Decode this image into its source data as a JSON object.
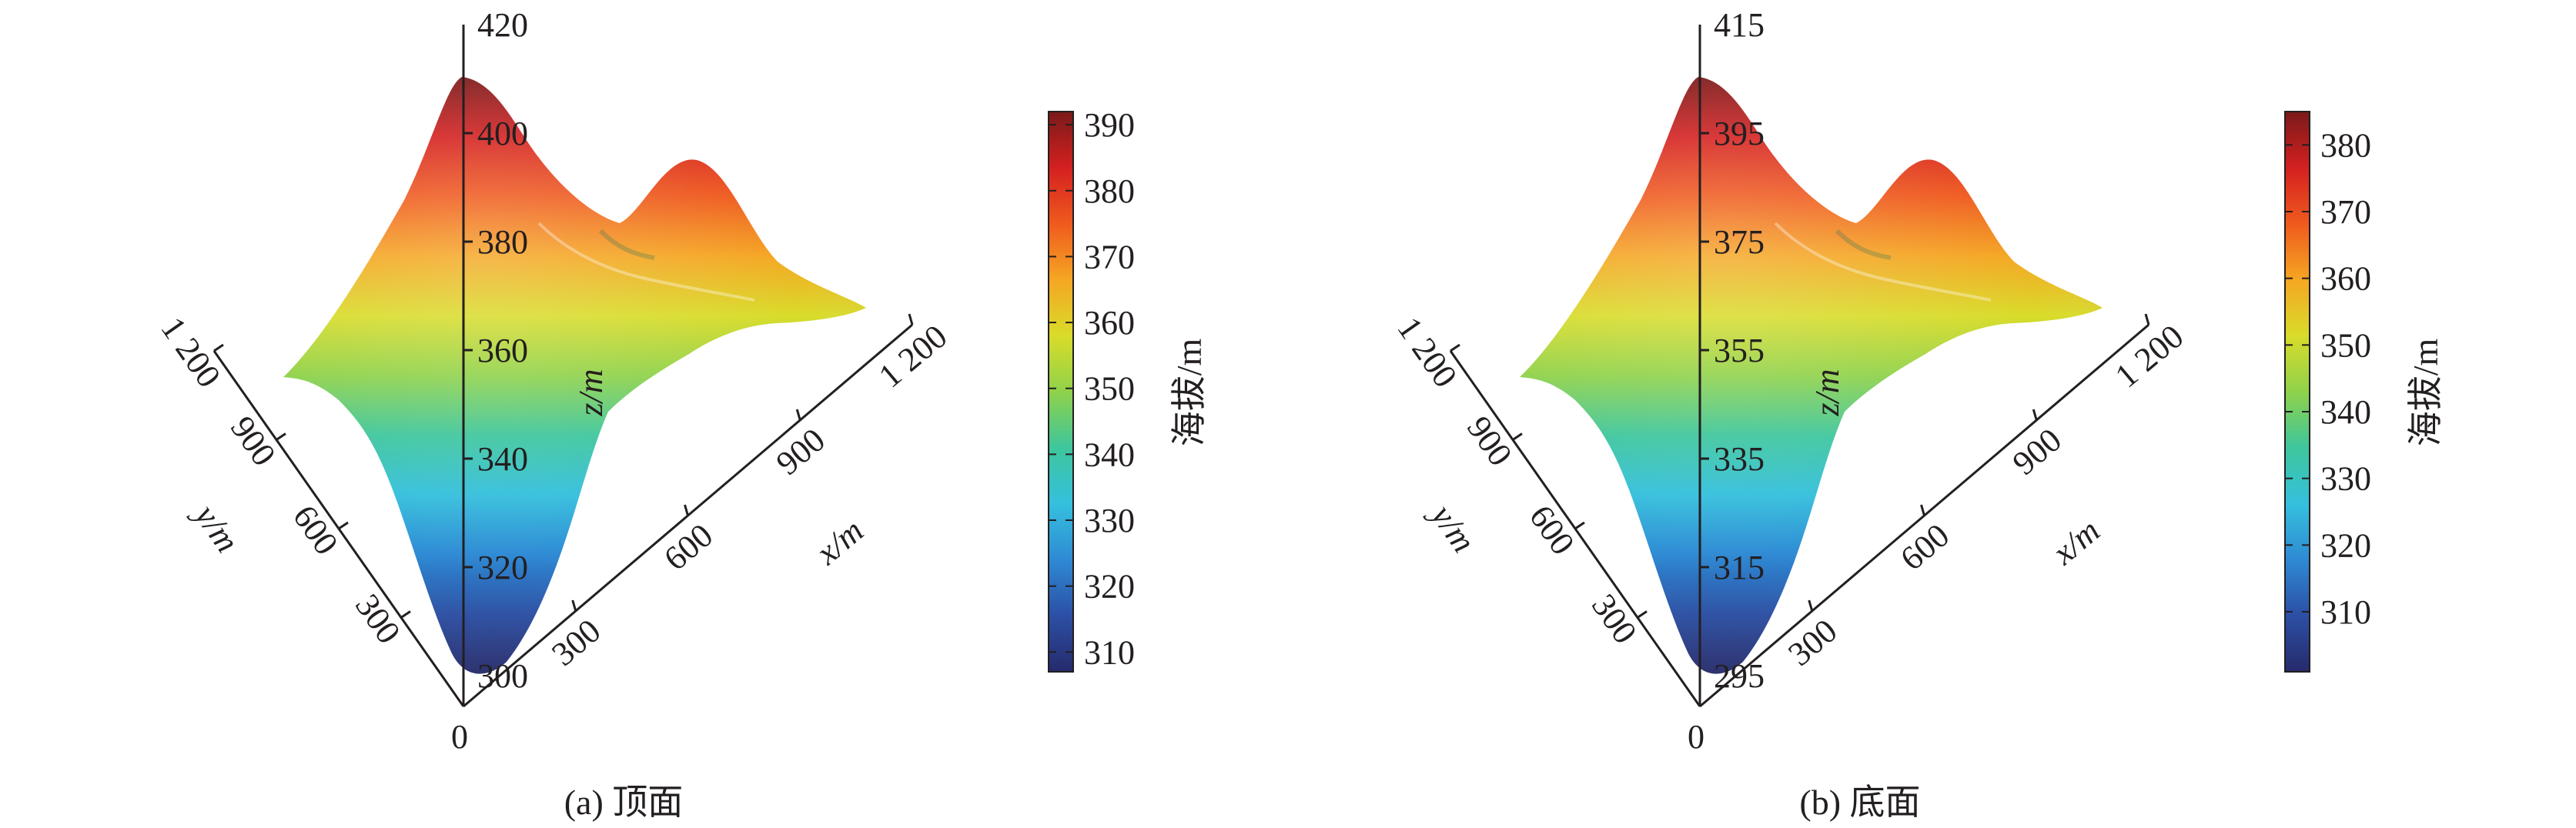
{
  "chart_data": [
    {
      "type": "surface",
      "caption": "(a) 顶面",
      "zlabel": "z/m",
      "xlabel": "x/m",
      "ylabel": "y/m",
      "z_ticks": [
        "420",
        "400",
        "380",
        "360",
        "340",
        "320",
        "300"
      ],
      "zlim": [
        300,
        420
      ],
      "x_ticks": [
        "300",
        "600",
        "900",
        "1 200"
      ],
      "y_ticks": [
        "300",
        "600",
        "900",
        "1 200"
      ],
      "origin_label": "0",
      "colorbar": {
        "label": "海拔/m",
        "ticks": [
          "390",
          "380",
          "370",
          "360",
          "350",
          "340",
          "330",
          "320",
          "310"
        ],
        "range": [
          307,
          392
        ]
      }
    },
    {
      "type": "surface",
      "caption": "(b) 底面",
      "zlabel": "z/m",
      "xlabel": "x/m",
      "ylabel": "y/m",
      "z_ticks": [
        "415",
        "395",
        "375",
        "355",
        "335",
        "315",
        "295"
      ],
      "zlim": [
        295,
        415
      ],
      "x_ticks": [
        "300",
        "600",
        "900",
        "1 200"
      ],
      "y_ticks": [
        "300",
        "600",
        "900",
        "1 200"
      ],
      "origin_label": "0",
      "colorbar": {
        "label": "海拔/m",
        "ticks": [
          "380",
          "370",
          "360",
          "350",
          "340",
          "330",
          "320",
          "310"
        ],
        "range": [
          301,
          385
        ]
      }
    }
  ],
  "colors": {
    "axis": "#231f20",
    "colormap": [
      "#262a6b",
      "#2c4fa4",
      "#2e8ad4",
      "#35c0dd",
      "#3ec69c",
      "#8fd24a",
      "#d9dc2a",
      "#f5a623",
      "#ef5a1e",
      "#d42020",
      "#7a1a1a"
    ]
  }
}
